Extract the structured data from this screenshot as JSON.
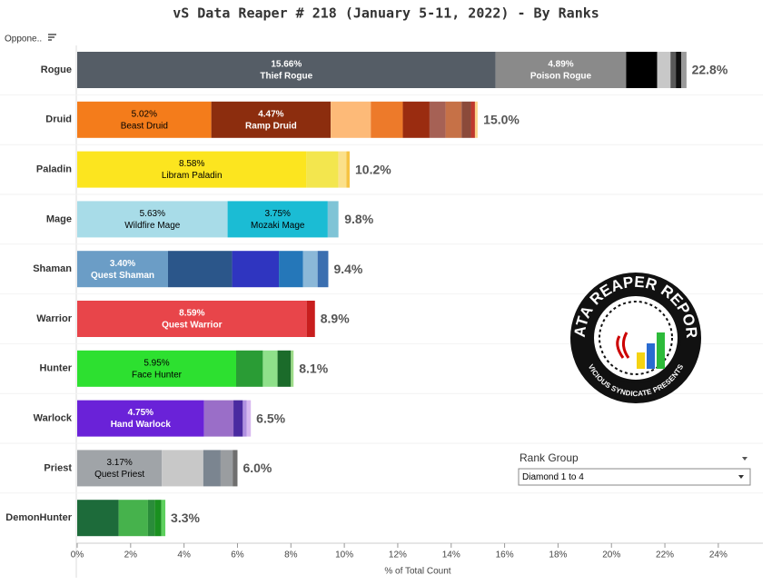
{
  "chart_data": {
    "type": "stacked-bar",
    "title": "vS Data Reaper #  218 (January 5-11, 2022) - By Ranks",
    "row_header": "Oppone..",
    "x_label": "% of Total Count",
    "xlim": [
      0,
      25.5
    ],
    "xticks": [
      {
        "value": 0,
        "label": "0%"
      },
      {
        "value": 2,
        "label": "2%"
      },
      {
        "value": 4,
        "label": "4%"
      },
      {
        "value": 6,
        "label": "6%"
      },
      {
        "value": 8,
        "label": "8%"
      },
      {
        "value": 10,
        "label": "10%"
      },
      {
        "value": 12,
        "label": "12%"
      },
      {
        "value": 14,
        "label": "14%"
      },
      {
        "value": 16,
        "label": "16%"
      },
      {
        "value": 18,
        "label": "18%"
      },
      {
        "value": 20,
        "label": "20%"
      },
      {
        "value": 22,
        "label": "22%"
      },
      {
        "value": 24,
        "label": "24%"
      }
    ],
    "bars": [
      {
        "category": "Rogue",
        "total": 22.8,
        "total_label": "22.8%",
        "segments": [
          {
            "name": "Thief Rogue",
            "value": 15.66,
            "value_label": "15.66%",
            "color": "#555d66",
            "text_color": "#ffffff"
          },
          {
            "name": "Poison Rogue",
            "value": 4.89,
            "value_label": "4.89%",
            "color": "#8a8a8a",
            "text_color": "#ffffff"
          },
          {
            "value": 1.16,
            "color": "#000000"
          },
          {
            "value": 0.5,
            "color": "#c8c8c8"
          },
          {
            "value": 0.2,
            "color": "#5a5a5a"
          },
          {
            "value": 0.2,
            "color": "#111111"
          },
          {
            "value": 0.2,
            "color": "#9a9a9a"
          }
        ]
      },
      {
        "category": "Druid",
        "total": 15.0,
        "total_label": "15.0%",
        "segments": [
          {
            "name": "Beast Druid",
            "value": 5.02,
            "value_label": "5.02%",
            "color": "#f47c1b",
            "text_color": "#000000"
          },
          {
            "name": "Ramp Druid",
            "value": 4.47,
            "value_label": "4.47%",
            "color": "#8c2d0e",
            "text_color": "#ffffff"
          },
          {
            "value": 1.5,
            "color": "#fdba78"
          },
          {
            "value": 1.2,
            "color": "#ed7a2a"
          },
          {
            "value": 1.0,
            "color": "#9a2c10"
          },
          {
            "value": 0.6,
            "color": "#a66155"
          },
          {
            "value": 0.6,
            "color": "#c67147"
          },
          {
            "value": 0.35,
            "color": "#8b4a3a"
          },
          {
            "value": 0.15,
            "color": "#c0392b"
          },
          {
            "value": 0.1,
            "color": "#fbd48a"
          }
        ]
      },
      {
        "category": "Paladin",
        "total": 10.2,
        "total_label": "10.2%",
        "segments": [
          {
            "name": "Libram Paladin",
            "value": 8.58,
            "value_label": "8.58%",
            "color": "#fce51f",
            "text_color": "#000000"
          },
          {
            "value": 1.2,
            "color": "#f3e64e"
          },
          {
            "value": 0.3,
            "color": "#fbe08a"
          },
          {
            "value": 0.12,
            "color": "#f6c343"
          }
        ]
      },
      {
        "category": "Mage",
        "total": 9.8,
        "total_label": "9.8%",
        "segments": [
          {
            "name": "Wildfire Mage",
            "value": 5.63,
            "value_label": "5.63%",
            "color": "#a8dce8",
            "text_color": "#000000"
          },
          {
            "name": "Mozaki Mage",
            "value": 3.75,
            "value_label": "3.75%",
            "color": "#1bbcd4",
            "text_color": "#000000"
          },
          {
            "value": 0.4,
            "color": "#7fc4d6"
          }
        ]
      },
      {
        "category": "Shaman",
        "total": 9.4,
        "total_label": "9.4%",
        "segments": [
          {
            "name": "Quest Shaman",
            "value": 3.4,
            "value_label": "3.40%",
            "color": "#6b9dc6",
            "text_color": "#ffffff"
          },
          {
            "value": 2.4,
            "color": "#2b568a"
          },
          {
            "value": 1.75,
            "color": "#2f35c0"
          },
          {
            "value": 0.9,
            "color": "#2577b9"
          },
          {
            "value": 0.55,
            "color": "#8bb8d8"
          },
          {
            "value": 0.4,
            "color": "#3b6fb0"
          }
        ]
      },
      {
        "category": "Warrior",
        "total": 8.9,
        "total_label": "8.9%",
        "segments": [
          {
            "name": "Quest Warrior",
            "value": 8.59,
            "value_label": "8.59%",
            "color": "#e8454a",
            "text_color": "#ffffff"
          },
          {
            "value": 0.31,
            "color": "#c81e1e"
          }
        ]
      },
      {
        "category": "Hunter",
        "total": 8.1,
        "total_label": "8.1%",
        "segments": [
          {
            "name": "Face Hunter",
            "value": 5.95,
            "value_label": "5.95%",
            "color": "#2de030",
            "text_color": "#000000"
          },
          {
            "value": 1.0,
            "color": "#2a9c35"
          },
          {
            "value": 0.55,
            "color": "#8fe08a"
          },
          {
            "value": 0.5,
            "color": "#1b6b2a"
          },
          {
            "value": 0.1,
            "color": "#9ddc88"
          }
        ]
      },
      {
        "category": "Warlock",
        "total": 6.5,
        "total_label": "6.5%",
        "segments": [
          {
            "name": "Hand Warlock",
            "value": 4.75,
            "value_label": "4.75%",
            "color": "#6a22d8",
            "text_color": "#ffffff"
          },
          {
            "value": 1.1,
            "color": "#9a6ec8"
          },
          {
            "value": 0.35,
            "color": "#4a2aa0"
          },
          {
            "value": 0.15,
            "color": "#b090e0"
          },
          {
            "value": 0.15,
            "color": "#d8b8f0"
          }
        ]
      },
      {
        "category": "Priest",
        "total": 6.0,
        "total_label": "6.0%",
        "segments": [
          {
            "name": "Quest Priest",
            "value": 3.17,
            "value_label": "3.17%",
            "color": "#a0a4a8",
            "text_color": "#000000"
          },
          {
            "value": 1.55,
            "color": "#c8c8c8"
          },
          {
            "value": 0.65,
            "color": "#7b8590"
          },
          {
            "value": 0.45,
            "color": "#9a9da0"
          },
          {
            "value": 0.18,
            "color": "#6f6f6f"
          }
        ]
      },
      {
        "category": "DemonHunter",
        "total": 3.3,
        "total_label": "3.3%",
        "segments": [
          {
            "value": 1.55,
            "color": "#1d6b3a"
          },
          {
            "value": 1.1,
            "color": "#46b24c"
          },
          {
            "value": 0.25,
            "color": "#2a8c3a"
          },
          {
            "value": 0.25,
            "color": "#1a9020"
          },
          {
            "value": 0.15,
            "color": "#5ed05e"
          }
        ]
      }
    ],
    "filter": {
      "label": "Rank Group",
      "selected": "Diamond 1 to 4"
    },
    "logo": {
      "title": "DATA REAPER REPORT",
      "subtitle": "VICIOUS SYNDICATE PRESENTS"
    }
  }
}
